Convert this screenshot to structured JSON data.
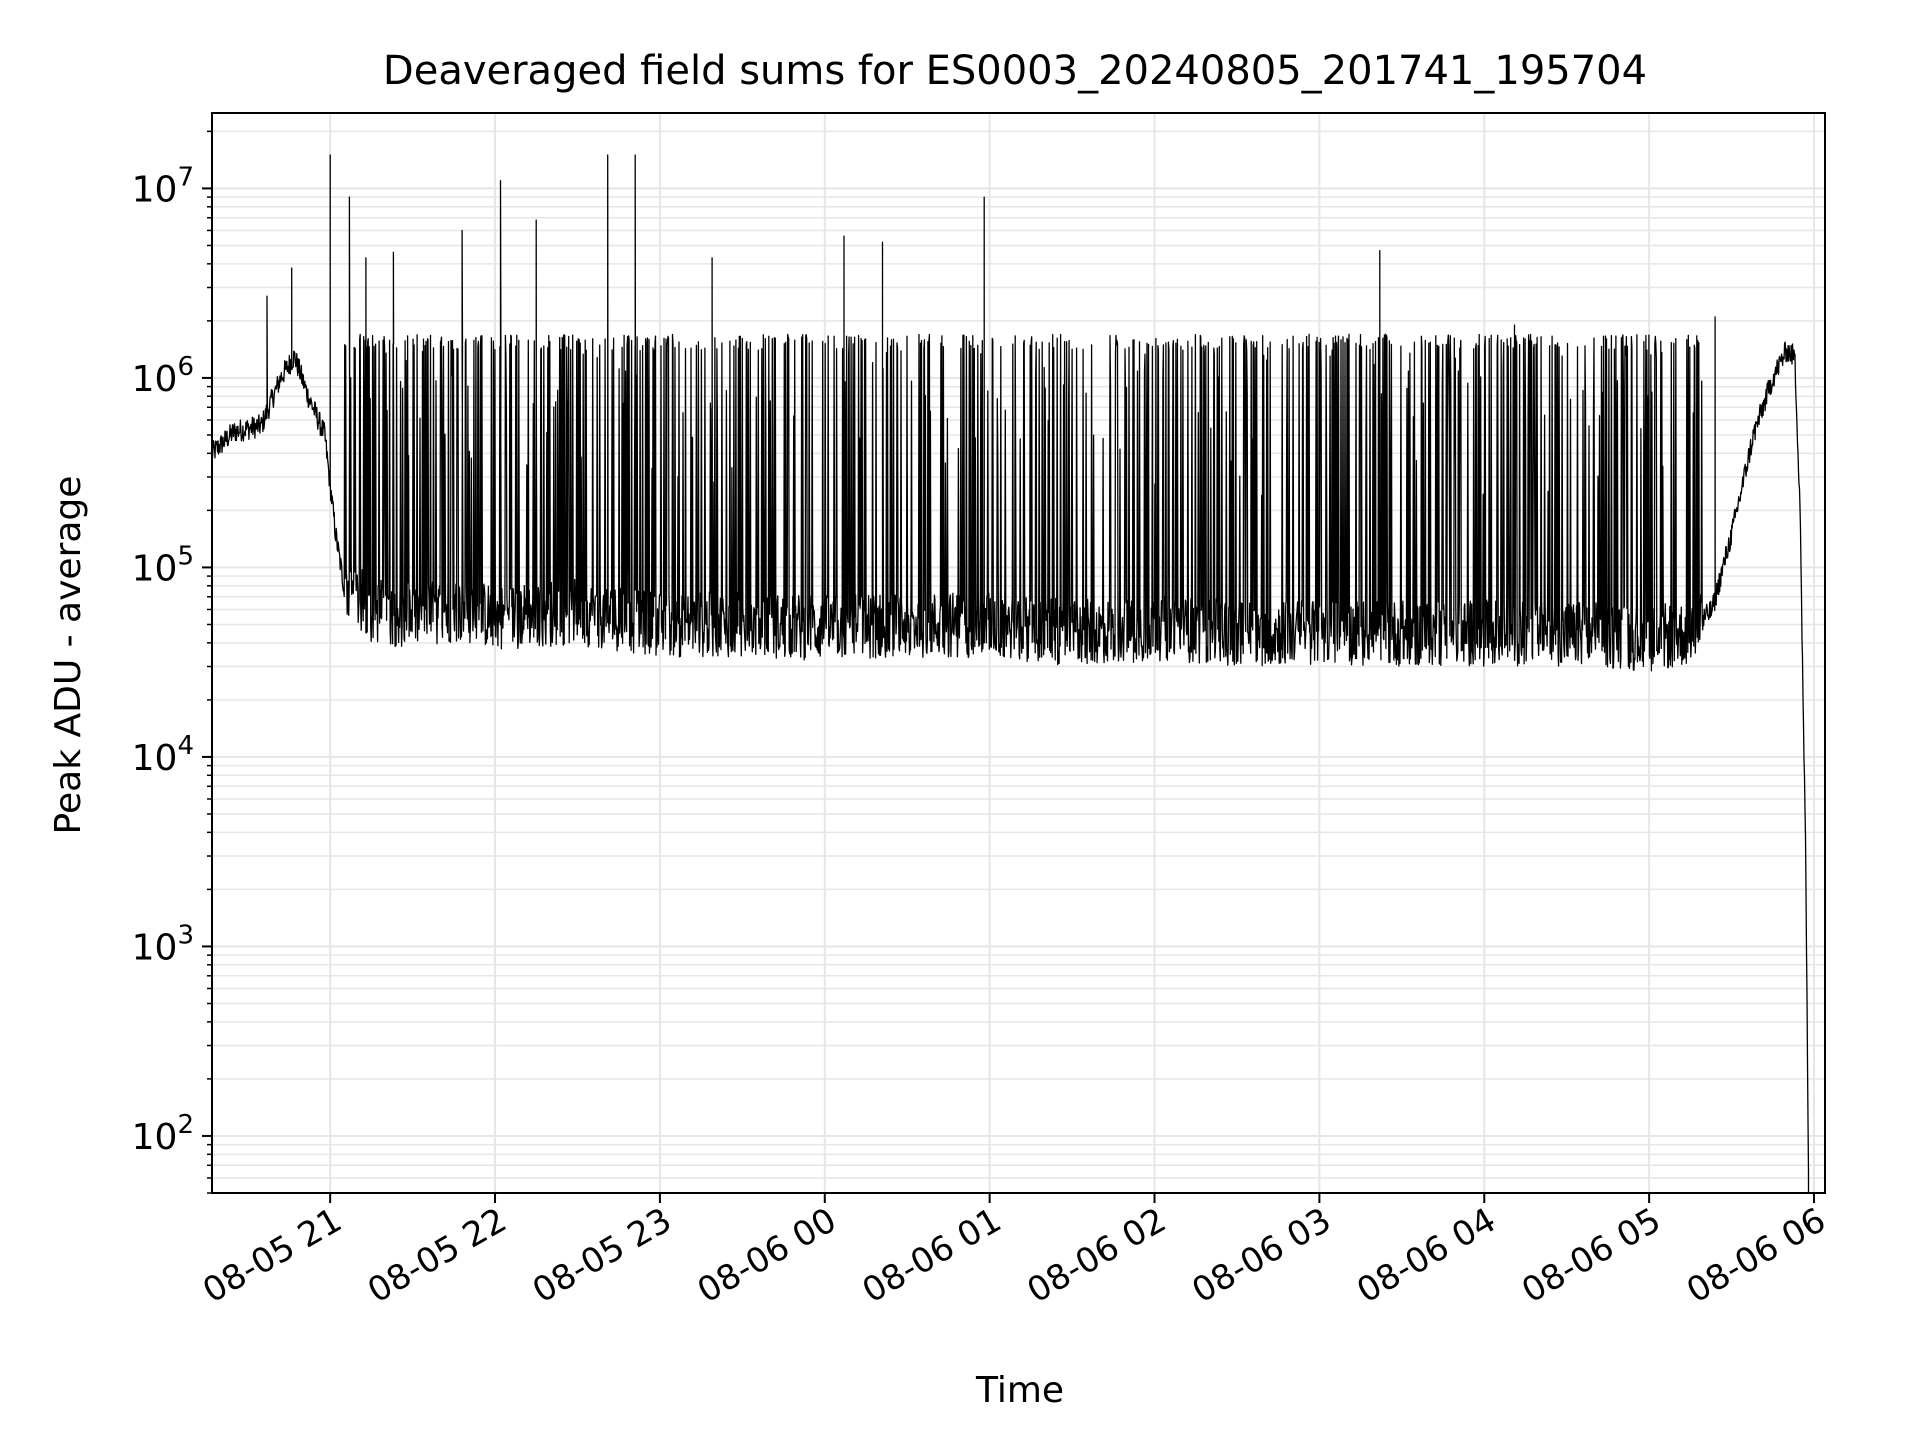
{
  "chart_data": {
    "type": "line",
    "title": "Deaveraged field sums for ES0003_20240805_201741_195704",
    "xlabel": "Time",
    "ylabel": "Peak ADU - average",
    "yscale": "log",
    "ylim": [
      50,
      25000000
    ],
    "xlim": [
      "2024-08-05 20:17",
      "2024-08-06 06:04"
    ],
    "grid": true,
    "line_color": "#000000",
    "grid_color": "#e6e6e6",
    "x_ticks": [
      {
        "t": "2024-08-05 21:00",
        "label": "08-05 21"
      },
      {
        "t": "2024-08-05 22:00",
        "label": "08-05 22"
      },
      {
        "t": "2024-08-05 23:00",
        "label": "08-05 23"
      },
      {
        "t": "2024-08-06 00:00",
        "label": "08-06 00"
      },
      {
        "t": "2024-08-06 01:00",
        "label": "08-06 01"
      },
      {
        "t": "2024-08-06 02:00",
        "label": "08-06 02"
      },
      {
        "t": "2024-08-06 03:00",
        "label": "08-06 03"
      },
      {
        "t": "2024-08-06 04:00",
        "label": "08-06 04"
      },
      {
        "t": "2024-08-06 05:00",
        "label": "08-06 05"
      },
      {
        "t": "2024-08-06 06:00",
        "label": "08-06 06"
      }
    ],
    "y_ticks": [
      {
        "value": 100,
        "base": "10",
        "exp": "2"
      },
      {
        "value": 1000,
        "base": "10",
        "exp": "3"
      },
      {
        "value": 10000,
        "base": "10",
        "exp": "4"
      },
      {
        "value": 100000,
        "base": "10",
        "exp": "5"
      },
      {
        "value": 1000000,
        "base": "10",
        "exp": "6"
      },
      {
        "value": 10000000,
        "base": "10",
        "exp": "7"
      }
    ],
    "series": [
      {
        "points": [
          [
            "2024-08-05 20:17",
            400000
          ],
          [
            "2024-08-05 20:25",
            520000
          ],
          [
            "2024-08-05 20:35",
            560000
          ],
          [
            "2024-08-05 20:42",
            1000000
          ],
          [
            "2024-08-05 20:47",
            1300000
          ],
          [
            "2024-08-05 20:52",
            800000
          ],
          [
            "2024-08-05 20:58",
            500000
          ],
          [
            "2024-08-05 21:02",
            150000
          ],
          [
            "2024-08-05 21:05",
            80000
          ],
          [
            "2024-08-05 21:15",
            60000
          ],
          [
            "2024-08-05 21:30",
            55000
          ],
          [
            "2024-08-05 21:45",
            60000
          ],
          [
            "2024-08-05 22:00",
            55000
          ],
          [
            "2024-08-05 22:30",
            58000
          ],
          [
            "2024-08-05 23:00",
            50000
          ],
          [
            "2024-08-05 23:30",
            50000
          ],
          [
            "2024-08-06 00:00",
            48000
          ],
          [
            "2024-08-06 00:30",
            50000
          ],
          [
            "2024-08-06 01:00",
            50000
          ],
          [
            "2024-08-06 01:30",
            45000
          ],
          [
            "2024-08-06 02:00",
            48000
          ],
          [
            "2024-08-06 02:30",
            45000
          ],
          [
            "2024-08-06 03:00",
            46000
          ],
          [
            "2024-08-06 03:30",
            45000
          ],
          [
            "2024-08-06 04:00",
            45000
          ],
          [
            "2024-08-06 04:30",
            45000
          ],
          [
            "2024-08-06 05:00",
            42000
          ],
          [
            "2024-08-06 05:15",
            45000
          ],
          [
            "2024-08-06 05:23",
            60000
          ],
          [
            "2024-08-06 05:30",
            150000
          ],
          [
            "2024-08-06 05:38",
            500000
          ],
          [
            "2024-08-06 05:45",
            1000000
          ],
          [
            "2024-08-06 05:50",
            1400000
          ],
          [
            "2024-08-06 05:53",
            1300000
          ],
          [
            "2024-08-06 05:55",
            200000
          ],
          [
            "2024-08-06 05:56",
            20000
          ],
          [
            "2024-08-06 05:57",
            3000
          ],
          [
            "2024-08-06 05:58",
            60
          ]
        ],
        "spikes": [
          [
            "2024-08-05 20:37",
            2700000
          ],
          [
            "2024-08-05 20:46",
            3800000
          ],
          [
            "2024-08-05 21:00",
            15000000
          ],
          [
            "2024-08-05 21:07",
            9000000
          ],
          [
            "2024-08-05 21:13",
            4300000
          ],
          [
            "2024-08-05 21:23",
            4600000
          ],
          [
            "2024-08-05 21:48",
            6000000
          ],
          [
            "2024-08-05 22:02",
            11000000
          ],
          [
            "2024-08-05 22:15",
            6800000
          ],
          [
            "2024-08-05 22:41",
            15000000
          ],
          [
            "2024-08-05 22:51",
            15000000
          ],
          [
            "2024-08-05 23:19",
            4300000
          ],
          [
            "2024-08-06 00:07",
            5600000
          ],
          [
            "2024-08-06 00:21",
            5200000
          ],
          [
            "2024-08-06 00:58",
            9000000
          ],
          [
            "2024-08-06 03:22",
            4700000
          ],
          [
            "2024-08-06 04:11",
            1900000
          ],
          [
            "2024-08-06 05:24",
            2100000
          ]
        ],
        "band_range": [
          1400000,
          1700000
        ]
      }
    ]
  }
}
